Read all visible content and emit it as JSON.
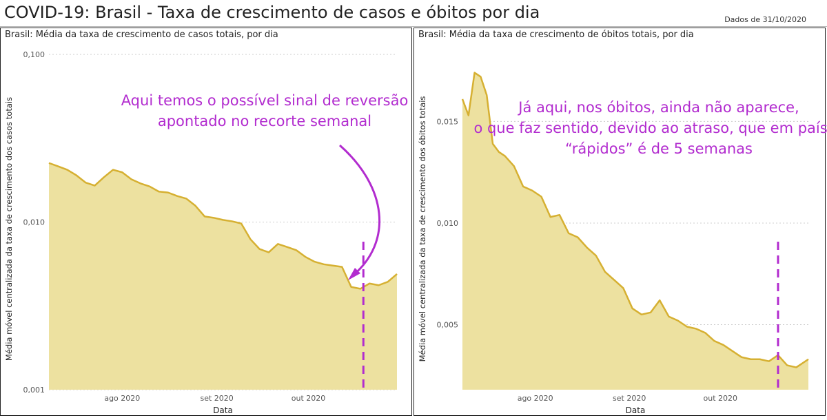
{
  "header": {
    "title": "COVID-19: Brasil - Taxa de crescimento de casos e óbitos por dia",
    "date_note": "Dados de 31/10/2020"
  },
  "colors": {
    "fill": "#ede1a0",
    "line": "#d6b032",
    "marker": "#b22ccf",
    "annotation": "#b22ccf",
    "grid": "#cccccc"
  },
  "chart_data": [
    {
      "type": "area",
      "title": "Brasil: Média da taxa de crescimento de casos totais, por dia",
      "xlabel": "Data",
      "ylabel": "Média móvel centralizada da taxa de crescimento dos casos totais",
      "y_scale": "log",
      "ylim": [
        0.001,
        0.1
      ],
      "y_ticks": [
        0.001,
        0.01,
        0.1
      ],
      "y_tick_labels": [
        "0,001",
        "0,010",
        "0,100"
      ],
      "x_ticks": [
        "2020-08-01",
        "2020-09-01",
        "2020-10-01"
      ],
      "x_tick_labels": [
        "ago 2020",
        "set 2020",
        "out 2020"
      ],
      "xlim": [
        "2020-07-08",
        "2020-10-30"
      ],
      "marker_date": "2020-10-19",
      "annotation": "Aqui temos o possível sinal de reversão apontado no recorte semanal",
      "series": [
        {
          "x": [
            "2020-07-08",
            "2020-07-11",
            "2020-07-14",
            "2020-07-17",
            "2020-07-20",
            "2020-07-23",
            "2020-07-26",
            "2020-07-29",
            "2020-08-01",
            "2020-08-04",
            "2020-08-07",
            "2020-08-10",
            "2020-08-13",
            "2020-08-16",
            "2020-08-19",
            "2020-08-22",
            "2020-08-25",
            "2020-08-28",
            "2020-08-31",
            "2020-09-03",
            "2020-09-06",
            "2020-09-09",
            "2020-09-12",
            "2020-09-15",
            "2020-09-18",
            "2020-09-21",
            "2020-09-24",
            "2020-09-27",
            "2020-09-30",
            "2020-10-03",
            "2020-10-06",
            "2020-10-09",
            "2020-10-12",
            "2020-10-15",
            "2020-10-18",
            "2020-10-21",
            "2020-10-24",
            "2020-10-27",
            "2020-10-30"
          ],
          "values": [
            0.0225,
            0.0215,
            0.0205,
            0.019,
            0.0172,
            0.0165,
            0.0185,
            0.0205,
            0.0198,
            0.018,
            0.017,
            0.0163,
            0.0152,
            0.015,
            0.0143,
            0.0138,
            0.0125,
            0.0108,
            0.0106,
            0.0103,
            0.0101,
            0.0098,
            0.0079,
            0.0069,
            0.0066,
            0.0074,
            0.0071,
            0.0068,
            0.0062,
            0.0058,
            0.0056,
            0.0055,
            0.0054,
            0.0041,
            0.004,
            0.0043,
            0.0042,
            0.0044,
            0.0049
          ]
        }
      ]
    },
    {
      "type": "area",
      "title": "Brasil: Média da taxa de crescimento de óbitos totais, por dia",
      "xlabel": "Data",
      "ylabel": "Média móvel centralizada da taxa de crescimento dos óbitos totais",
      "y_scale": "linear",
      "ylim": [
        0.0018,
        0.0183
      ],
      "y_ticks": [
        0.005,
        0.01,
        0.015
      ],
      "y_tick_labels": [
        "0,005",
        "0,010",
        "0,015"
      ],
      "x_ticks": [
        "2020-08-01",
        "2020-09-01",
        "2020-10-01"
      ],
      "x_tick_labels": [
        "ago 2020",
        "set 2020",
        "out 2020"
      ],
      "xlim": [
        "2020-07-08",
        "2020-10-30"
      ],
      "marker_date": "2020-10-20",
      "annotation": "Já aqui, nos óbitos, ainda não aparece, o que faz sentido, devido ao atraso, que em países “rápidos” é de 5 semanas",
      "series": [
        {
          "x": [
            "2020-07-08",
            "2020-07-10",
            "2020-07-12",
            "2020-07-14",
            "2020-07-16",
            "2020-07-18",
            "2020-07-20",
            "2020-07-22",
            "2020-07-25",
            "2020-07-28",
            "2020-07-31",
            "2020-08-03",
            "2020-08-06",
            "2020-08-09",
            "2020-08-12",
            "2020-08-15",
            "2020-08-18",
            "2020-08-21",
            "2020-08-24",
            "2020-08-27",
            "2020-08-30",
            "2020-09-02",
            "2020-09-05",
            "2020-09-08",
            "2020-09-11",
            "2020-09-14",
            "2020-09-17",
            "2020-09-20",
            "2020-09-23",
            "2020-09-26",
            "2020-09-29",
            "2020-10-02",
            "2020-10-05",
            "2020-10-08",
            "2020-10-11",
            "2020-10-14",
            "2020-10-17",
            "2020-10-20",
            "2020-10-23",
            "2020-10-26",
            "2020-10-30"
          ],
          "values": [
            0.0161,
            0.0153,
            0.0174,
            0.0172,
            0.0163,
            0.0139,
            0.0135,
            0.0133,
            0.0128,
            0.0118,
            0.0116,
            0.0113,
            0.0103,
            0.0104,
            0.0095,
            0.0093,
            0.0088,
            0.0084,
            0.0076,
            0.0072,
            0.0068,
            0.0058,
            0.0055,
            0.0056,
            0.0062,
            0.0054,
            0.0052,
            0.0049,
            0.0048,
            0.0046,
            0.0042,
            0.004,
            0.0037,
            0.0034,
            0.0033,
            0.0033,
            0.0032,
            0.0035,
            0.003,
            0.0029,
            0.0033
          ]
        }
      ]
    }
  ]
}
